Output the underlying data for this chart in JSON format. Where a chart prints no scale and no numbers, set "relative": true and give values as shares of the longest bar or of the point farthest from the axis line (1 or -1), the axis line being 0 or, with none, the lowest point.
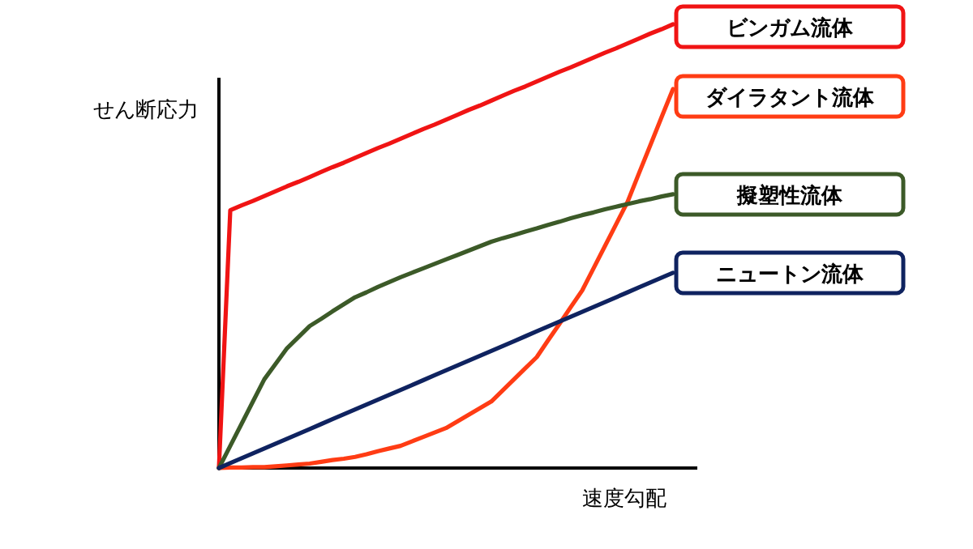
{
  "chart_data": {
    "type": "line",
    "relative": true,
    "xlabel": "速度勾配",
    "ylabel": "せん断応力",
    "marker": "none",
    "line_style": "solid",
    "categories": [
      null,
      null,
      null,
      null,
      null,
      null,
      null,
      null,
      null,
      null,
      null,
      null,
      null,
      null,
      null,
      null,
      null,
      null,
      null,
      null,
      null,
      null,
      null,
      null,
      null,
      null,
      null,
      null,
      null,
      null,
      null,
      null,
      null,
      null,
      null,
      null,
      null,
      null,
      null,
      null,
      null
    ],
    "series": [
      {
        "name": "ビンガム流体",
        "color": "#f01414",
        "values": [
          0,
          0.581,
          0.592,
          0.602,
          0.613,
          0.624,
          0.635,
          0.645,
          0.656,
          0.667,
          0.678,
          0.688,
          0.699,
          0.71,
          0.721,
          0.731,
          0.742,
          0.753,
          0.764,
          0.774,
          0.785,
          0.796,
          0.807,
          0.817,
          0.828,
          0.839,
          0.85,
          0.86,
          0.871,
          0.882,
          0.893,
          0.903,
          0.914,
          0.925,
          0.936,
          0.946,
          0.957,
          0.968,
          0.979,
          0.989,
          1
        ]
      },
      {
        "name": "ダイラタント流体",
        "color": "#ff3c14",
        "values": [
          0,
          0.001,
          0.001,
          0.002,
          0.002,
          0.004,
          0.006,
          0.008,
          0.01,
          0.014,
          0.018,
          0.021,
          0.025,
          0.031,
          0.038,
          0.044,
          0.05,
          0.06,
          0.07,
          0.08,
          0.09,
          0.105,
          0.12,
          0.135,
          0.15,
          0.175,
          0.2,
          0.225,
          0.25,
          0.288,
          0.325,
          0.363,
          0.4,
          0.45,
          0.5,
          0.55,
          0.6,
          0.664,
          0.727,
          0.791,
          0.854
        ]
      },
      {
        "name": "擬塑性流体",
        "color": "#3c5a28",
        "values": [
          0,
          0.05,
          0.1,
          0.15,
          0.2,
          0.235,
          0.27,
          0.295,
          0.32,
          0.336,
          0.353,
          0.369,
          0.385,
          0.396,
          0.408,
          0.419,
          0.43,
          0.44,
          0.45,
          0.46,
          0.47,
          0.48,
          0.49,
          0.5,
          0.51,
          0.518,
          0.525,
          0.533,
          0.54,
          0.548,
          0.555,
          0.563,
          0.57,
          0.576,
          0.583,
          0.589,
          0.595,
          0.601,
          0.606,
          0.612,
          0.617
        ]
      },
      {
        "name": "ニュートン流体",
        "color": "#0f2360",
        "values": [
          0,
          0.011,
          0.022,
          0.033,
          0.044,
          0.055,
          0.066,
          0.077,
          0.088,
          0.099,
          0.11,
          0.121,
          0.132,
          0.143,
          0.154,
          0.165,
          0.176,
          0.187,
          0.198,
          0.209,
          0.22,
          0.231,
          0.242,
          0.253,
          0.264,
          0.275,
          0.286,
          0.297,
          0.308,
          0.319,
          0.33,
          0.341,
          0.352,
          0.363,
          0.374,
          0.385,
          0.396,
          0.407,
          0.418,
          0.429,
          0.44
        ]
      }
    ]
  }
}
